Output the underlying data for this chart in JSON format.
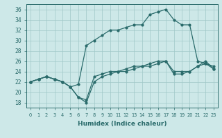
{
  "xlabel": "Humidex (Indice chaleur)",
  "background_color": "#cde8e8",
  "grid_color": "#a0c8c8",
  "line_color": "#2a6b6b",
  "xlim": [
    -0.5,
    23.5
  ],
  "ylim": [
    17,
    37
  ],
  "xticks": [
    0,
    1,
    2,
    3,
    4,
    5,
    6,
    7,
    8,
    9,
    10,
    11,
    12,
    13,
    14,
    15,
    16,
    17,
    18,
    19,
    20,
    21,
    22,
    23
  ],
  "yticks": [
    18,
    20,
    22,
    24,
    26,
    28,
    30,
    32,
    34,
    36
  ],
  "line1_x": [
    0,
    1,
    2,
    3,
    4,
    5,
    6,
    7,
    8,
    9,
    10,
    11,
    12,
    13,
    14,
    15,
    16,
    17,
    18,
    19,
    20,
    21,
    22,
    23
  ],
  "line1_y": [
    22,
    22.5,
    23,
    22.5,
    22,
    21,
    21.5,
    29,
    30,
    31,
    32,
    32,
    32.5,
    33,
    33,
    35,
    35.5,
    36,
    34,
    33,
    33,
    26,
    25.5,
    25
  ],
  "line2_x": [
    0,
    1,
    2,
    3,
    4,
    5,
    6,
    7,
    8,
    9,
    10,
    11,
    12,
    13,
    14,
    15,
    16,
    17,
    18,
    19,
    20,
    21,
    22,
    23
  ],
  "line2_y": [
    22,
    22.5,
    23,
    22.5,
    22,
    21,
    19,
    18.5,
    23,
    23.5,
    24,
    24,
    24.5,
    25,
    25,
    25.5,
    26,
    26,
    24,
    24,
    24,
    25,
    26,
    24.5
  ],
  "line3_x": [
    0,
    1,
    2,
    3,
    4,
    5,
    6,
    7,
    8,
    9,
    10,
    11,
    12,
    13,
    14,
    15,
    16,
    17,
    18,
    19,
    20,
    21,
    22,
    23
  ],
  "line3_y": [
    22,
    22.5,
    23,
    22.5,
    22,
    21,
    19,
    18,
    22,
    23,
    23.5,
    24,
    24,
    24.5,
    25,
    25,
    25.5,
    26,
    23.5,
    23.5,
    24,
    25,
    25.5,
    24.5
  ]
}
